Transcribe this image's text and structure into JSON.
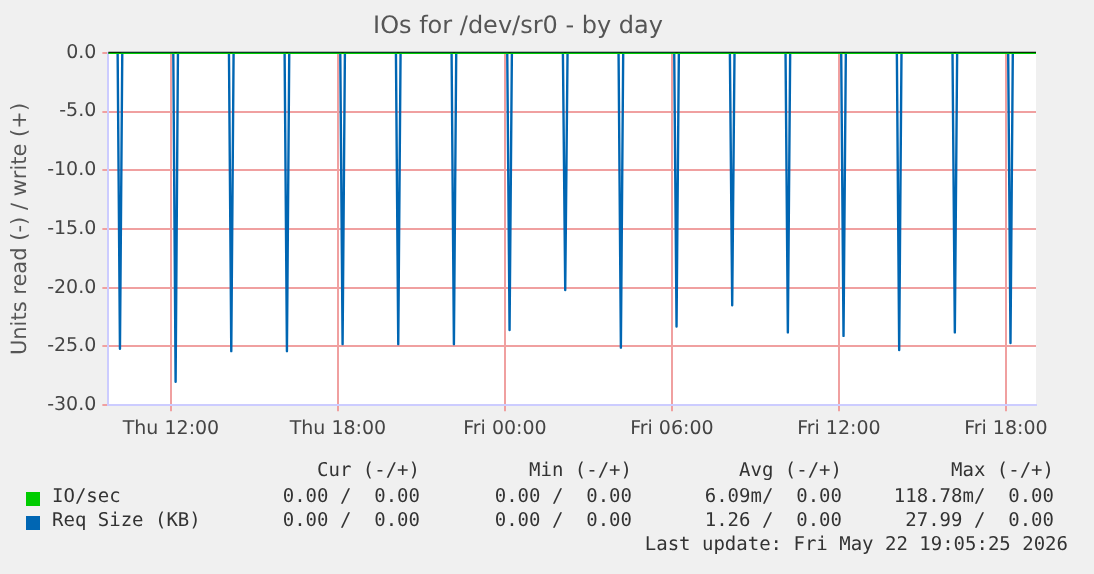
{
  "chart_data": {
    "type": "line",
    "title": "IOs for /dev/sr0 - by day",
    "ylabel": "Units read (-) / write (+)",
    "xlim": [
      "2026-05-21T09:45",
      "2026-05-22T19:05"
    ],
    "xticks": [
      {
        "value": "2026-05-21T12:00",
        "label": "Thu 12:00"
      },
      {
        "value": "2026-05-21T18:00",
        "label": "Thu 18:00"
      },
      {
        "value": "2026-05-22T00:00",
        "label": "Fri 00:00"
      },
      {
        "value": "2026-05-22T06:00",
        "label": "Fri 06:00"
      },
      {
        "value": "2026-05-22T12:00",
        "label": "Fri 12:00"
      },
      {
        "value": "2026-05-22T18:00",
        "label": "Fri 18:00"
      }
    ],
    "ylim": [
      -30,
      0
    ],
    "yticks": [
      {
        "value": -30,
        "label": "-30.0"
      },
      {
        "value": -25,
        "label": "-25.0"
      },
      {
        "value": -20,
        "label": "-20.0"
      },
      {
        "value": -15,
        "label": "-15.0"
      },
      {
        "value": -10,
        "label": "-10.0"
      },
      {
        "value": -5,
        "label": "-5.0"
      },
      {
        "value": 0,
        "label": "0.0"
      }
    ],
    "grid": true,
    "legend": "bottom",
    "marker": "none",
    "line_style": "solid",
    "ref_lines": [
      {
        "axis": "y",
        "value": 0,
        "color": "#000000"
      }
    ],
    "series": [
      {
        "name": "IO/sec",
        "color": "#00cc00",
        "x": [
          "2026-05-21T09:45",
          "2026-05-22T19:05"
        ],
        "values": [
          0,
          0
        ]
      },
      {
        "name": "Req Size (KB)",
        "color": "#0066b3",
        "x": [
          "2026-05-21T10:05",
          "2026-05-21T10:10",
          "2026-05-21T10:15",
          "2026-05-21T12:05",
          "2026-05-21T12:10",
          "2026-05-21T12:15",
          "2026-05-21T14:05",
          "2026-05-21T14:10",
          "2026-05-21T14:15",
          "2026-05-21T16:05",
          "2026-05-21T16:10",
          "2026-05-21T16:15",
          "2026-05-21T18:05",
          "2026-05-21T18:10",
          "2026-05-21T18:15",
          "2026-05-21T20:05",
          "2026-05-21T20:10",
          "2026-05-21T20:15",
          "2026-05-21T22:05",
          "2026-05-21T22:10",
          "2026-05-21T22:15",
          "2026-05-22T00:05",
          "2026-05-22T00:10",
          "2026-05-22T00:15",
          "2026-05-22T02:05",
          "2026-05-22T02:10",
          "2026-05-22T02:15",
          "2026-05-22T04:05",
          "2026-05-22T04:10",
          "2026-05-22T04:15",
          "2026-05-22T06:05",
          "2026-05-22T06:10",
          "2026-05-22T06:15",
          "2026-05-22T08:05",
          "2026-05-22T08:10",
          "2026-05-22T08:15",
          "2026-05-22T10:05",
          "2026-05-22T10:10",
          "2026-05-22T10:15",
          "2026-05-22T12:05",
          "2026-05-22T12:10",
          "2026-05-22T12:15",
          "2026-05-22T14:05",
          "2026-05-22T14:10",
          "2026-05-22T14:15",
          "2026-05-22T16:05",
          "2026-05-22T16:10",
          "2026-05-22T16:15",
          "2026-05-22T18:05",
          "2026-05-22T18:10",
          "2026-05-22T18:15"
        ],
        "values": [
          0,
          -25.2,
          0,
          0,
          -28.0,
          0,
          0,
          -25.4,
          0,
          0,
          -25.4,
          0,
          0,
          -24.8,
          0,
          0,
          -24.8,
          0,
          0,
          -24.8,
          0,
          0,
          -23.6,
          0,
          0,
          -20.2,
          0,
          0,
          -25.1,
          0,
          0,
          -23.3,
          0,
          0,
          -21.5,
          0,
          0,
          -23.8,
          0,
          0,
          -24.1,
          0,
          0,
          -25.3,
          0,
          0,
          -23.8,
          0,
          0,
          -24.7,
          0
        ]
      }
    ],
    "annotations": [
      "Cur (-/+)",
      "Min (-/+)",
      "Avg (-/+)",
      "Max (-/+)",
      "0.00 /  0.00",
      "0.00 /  0.00",
      "6.09m/  0.00",
      "118.78m/  0.00",
      "0.00 /  0.00",
      "0.00 /  0.00",
      "1.26 /  0.00",
      "27.99 /  0.00",
      "Last update: Fri May 22 19:05:25 2026"
    ]
  }
}
